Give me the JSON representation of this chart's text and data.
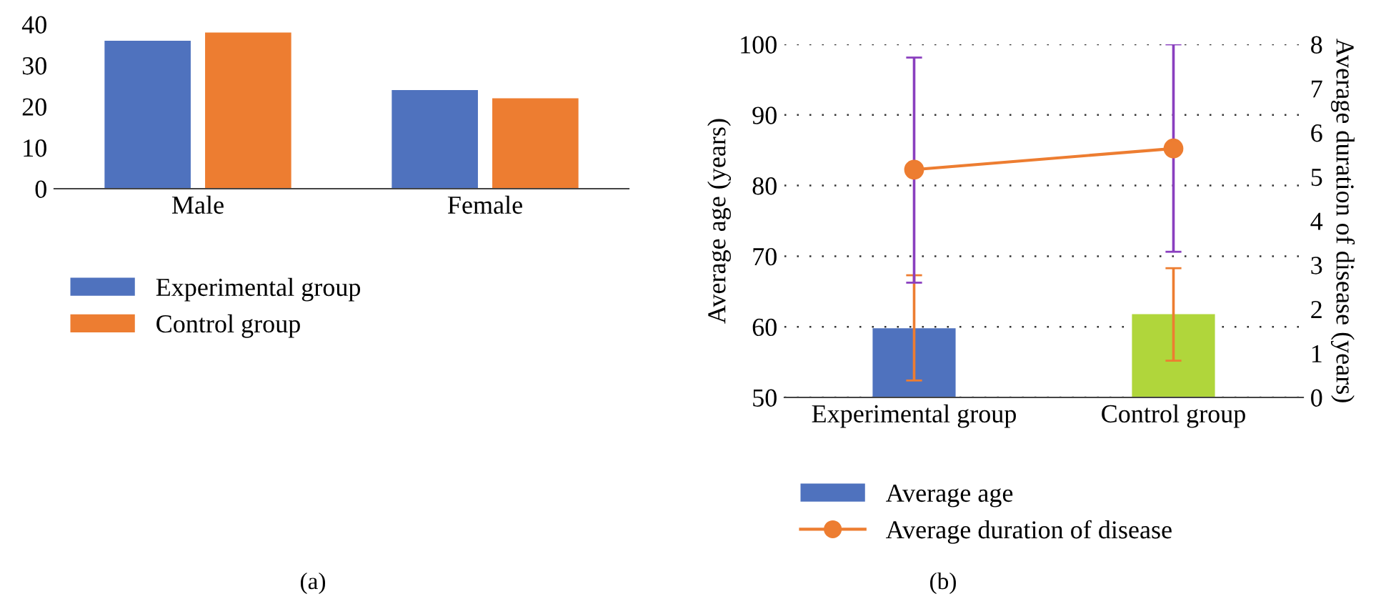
{
  "chart_data": [
    {
      "type": "bar",
      "categories": [
        "Male",
        "Female"
      ],
      "ylim": [
        0,
        40
      ],
      "yticks": [
        0,
        10,
        20,
        30,
        40
      ],
      "grid": false,
      "legend": "bottom",
      "annotations": [
        "(a)"
      ],
      "series": [
        {
          "name": "Experimental group",
          "color": "#4f72be",
          "values": [
            36,
            24
          ]
        },
        {
          "name": "Control group",
          "color": "#ed7d31",
          "values": [
            38,
            22
          ]
        }
      ]
    },
    {
      "type": "bar",
      "categories": [
        "Experimental group",
        "Control group"
      ],
      "ylabel": "Average age (years)",
      "y2label": "Average duration of disease (years)",
      "ylim": [
        50,
        100
      ],
      "yticks": [
        50,
        60,
        70,
        80,
        90,
        100
      ],
      "y2lim": [
        0,
        8
      ],
      "y2ticks": [
        0,
        1,
        2,
        3,
        4,
        5,
        6,
        7,
        8
      ],
      "grid": "y",
      "legend": "bottom",
      "annotations": [
        "(b)"
      ],
      "series": [
        {
          "name": "Average age",
          "type": "bar",
          "color": "#4f72be",
          "colors": [
            "#4f72be",
            "#b0d63b"
          ],
          "values": [
            59.8,
            61.8
          ],
          "errors": [
            [
              52.4,
              67.3
            ],
            [
              55.2,
              68.3
            ]
          ]
        },
        {
          "name": "Average duration of disease",
          "type": "line",
          "axis": "y2",
          "color": "#ed7d31",
          "marker": "circle",
          "line_style": "solid",
          "values": [
            5.16,
            5.64
          ],
          "errors": [
            [
              2.6,
              7.7
            ],
            [
              3.3,
              8.0
            ]
          ]
        }
      ]
    }
  ]
}
